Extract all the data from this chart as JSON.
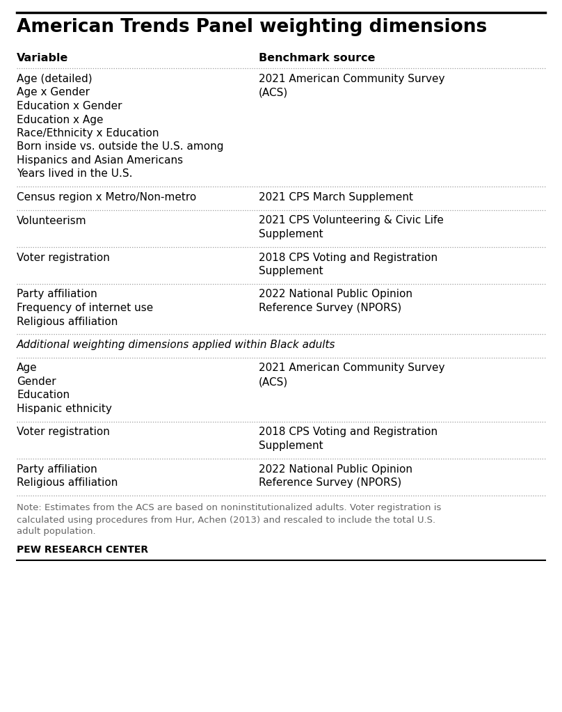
{
  "title": "American Trends Panel weighting dimensions",
  "title_fontsize": 19,
  "header_variable": "Variable",
  "header_benchmark": "Benchmark source",
  "col_split": 0.46,
  "rows": [
    {
      "variables": [
        "Age (detailed)",
        "Age x Gender",
        "Education x Gender",
        "Education x Age",
        "Race/Ethnicity x Education",
        "Born inside vs. outside the U.S. among\nHispanics and Asian Americans",
        "Years lived in the U.S."
      ],
      "benchmark": "2021 American Community Survey\n(ACS)",
      "separator": true
    },
    {
      "variables": [
        "Census region x Metro/Non-metro"
      ],
      "benchmark": "2021 CPS March Supplement",
      "separator": true
    },
    {
      "variables": [
        "Volunteerism"
      ],
      "benchmark": "2021 CPS Volunteering & Civic Life\nSupplement",
      "separator": true
    },
    {
      "variables": [
        "Voter registration"
      ],
      "benchmark": "2018 CPS Voting and Registration\nSupplement",
      "separator": true
    },
    {
      "variables": [
        "Party affiliation",
        "Frequency of internet use",
        "Religious affiliation"
      ],
      "benchmark": "2022 National Public Opinion\nReference Survey (NPORS)",
      "separator": true
    },
    {
      "variables": [
        "Additional weighting dimensions applied within Black adults"
      ],
      "benchmark": "",
      "italic": true,
      "separator": true
    },
    {
      "variables": [
        "Age",
        "Gender",
        "Education",
        "Hispanic ethnicity"
      ],
      "benchmark": "2021 American Community Survey\n(ACS)",
      "separator": true
    },
    {
      "variables": [
        "Voter registration"
      ],
      "benchmark": "2018 CPS Voting and Registration\nSupplement",
      "separator": true
    },
    {
      "variables": [
        "Party affiliation",
        "Religious affiliation"
      ],
      "benchmark": "2022 National Public Opinion\nReference Survey (NPORS)",
      "separator": true
    }
  ],
  "note": "Note: Estimates from the ACS are based on noninstitutionalized adults. Voter registration is\ncalculated using procedures from Hur, Achen (2013) and rescaled to include the total U.S.\nadult population.",
  "footer": "PEW RESEARCH CENTER",
  "bg_color": "#ffffff",
  "text_color": "#000000",
  "note_color": "#666666",
  "separator_color": "#999999",
  "top_line_color": "#000000",
  "bottom_line_color": "#000000"
}
